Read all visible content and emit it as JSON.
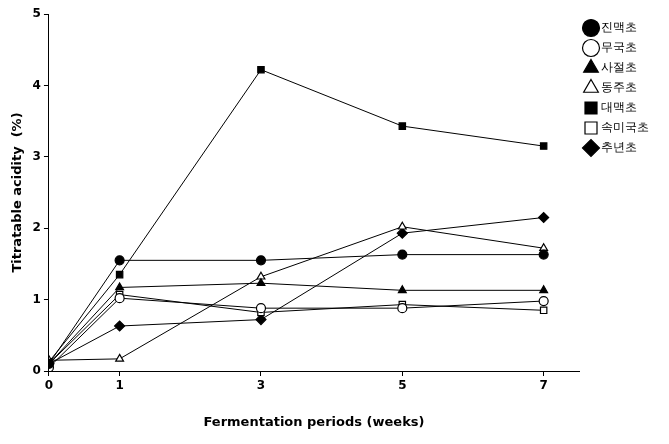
{
  "chart_data": {
    "type": "line",
    "x_label": "Fermentation periods (weeks)",
    "y_label": "Titratable acidity  (%)",
    "x": [
      0,
      1,
      3,
      5,
      7
    ],
    "xlim": [
      0,
      7.5
    ],
    "xticks": [
      0,
      1,
      3,
      5,
      7
    ],
    "ylim": [
      0,
      5
    ],
    "yticks": [
      0,
      1,
      2,
      3,
      4,
      5
    ],
    "grid": false,
    "legend": "right",
    "series": [
      {
        "name": "진맥초",
        "color": "#000000",
        "marker": "circle",
        "values": [
          0.1,
          1.55,
          1.55,
          1.63,
          1.63
        ]
      },
      {
        "name": "무국초",
        "color": "#000000",
        "marker": "open_circle",
        "values": [
          0.05,
          1.02,
          0.88,
          0.88,
          0.98
        ]
      },
      {
        "name": "사절초",
        "color": "#000000",
        "marker": "triangle",
        "values": [
          0.1,
          1.17,
          1.23,
          1.13,
          1.13
        ]
      },
      {
        "name": "동주초",
        "color": "#000000",
        "marker": "open_triangle",
        "values": [
          0.15,
          0.17,
          1.32,
          2.02,
          1.72
        ]
      },
      {
        "name": "대맥초",
        "color": "#000000",
        "marker": "square",
        "values": [
          0.13,
          1.35,
          4.22,
          3.43,
          3.15
        ]
      },
      {
        "name": "속미국초",
        "color": "#000000",
        "marker": "open_square",
        "values": [
          0.1,
          1.07,
          0.82,
          0.93,
          0.85
        ]
      },
      {
        "name": "추년초",
        "color": "#000000",
        "marker": "diamond",
        "values": [
          0.1,
          0.63,
          0.72,
          1.93,
          2.15
        ]
      }
    ]
  }
}
